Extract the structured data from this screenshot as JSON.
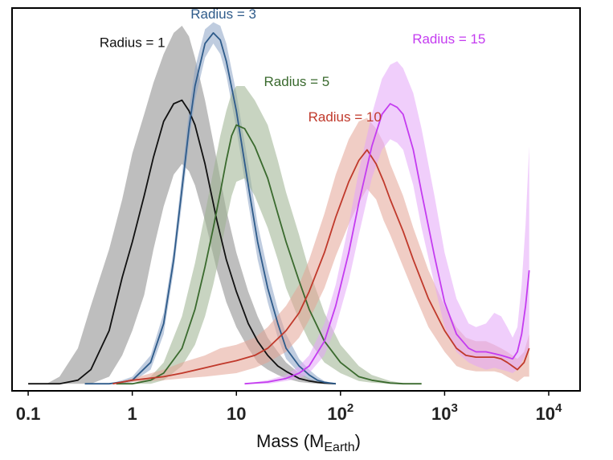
{
  "chart_data": {
    "type": "line",
    "title": "",
    "xlabel": "Mass (M",
    "xlabel_subscript": "Earth",
    "xlabel_close": ")",
    "ylabel": "",
    "xscale": "log",
    "xlim": [
      0.07,
      20000
    ],
    "ylim": [
      -0.02,
      1.06
    ],
    "x_ticks": [
      {
        "value": 0.1,
        "label": "0.1"
      },
      {
        "value": 1,
        "label": "1"
      },
      {
        "value": 10,
        "label": "10"
      },
      {
        "value": 100,
        "label": "10",
        "exp": "2"
      },
      {
        "value": 1000,
        "label": "10",
        "exp": "3"
      },
      {
        "value": 10000,
        "label": "10",
        "exp": "4"
      }
    ],
    "series": [
      {
        "name": "Radius = 1",
        "label_text": "Radius = 1",
        "label_pos": [
          1.0,
          0.95
        ],
        "color": "#111111",
        "fill": "#888888",
        "x": [
          0.1,
          0.15,
          0.2,
          0.3,
          0.4,
          0.6,
          0.8,
          1.0,
          1.3,
          1.6,
          2.0,
          2.5,
          3.0,
          3.5,
          4.0,
          5.0,
          6.5,
          8.0,
          10,
          13,
          16,
          20,
          25,
          30,
          40,
          50,
          60,
          70,
          90
        ],
        "y": [
          0.0,
          0.0,
          0.0,
          0.01,
          0.04,
          0.15,
          0.3,
          0.4,
          0.53,
          0.64,
          0.74,
          0.79,
          0.8,
          0.77,
          0.73,
          0.62,
          0.46,
          0.35,
          0.26,
          0.17,
          0.12,
          0.08,
          0.05,
          0.035,
          0.015,
          0.008,
          0.004,
          0.002,
          0.0
        ],
        "upper": [
          0.0,
          0.0,
          0.02,
          0.1,
          0.22,
          0.38,
          0.52,
          0.65,
          0.76,
          0.85,
          0.93,
          0.99,
          1.01,
          0.98,
          0.92,
          0.8,
          0.63,
          0.49,
          0.37,
          0.26,
          0.19,
          0.13,
          0.09,
          0.06,
          0.03,
          0.015,
          0.008,
          0.004,
          0.0
        ],
        "lower": [
          0.0,
          0.0,
          0.0,
          0.0,
          0.0,
          0.02,
          0.08,
          0.15,
          0.25,
          0.38,
          0.5,
          0.59,
          0.62,
          0.6,
          0.56,
          0.46,
          0.32,
          0.23,
          0.16,
          0.1,
          0.06,
          0.04,
          0.025,
          0.015,
          0.005,
          0.002,
          0.0,
          0.0,
          0.0
        ]
      },
      {
        "name": "Radius = 3",
        "label_text": "Radius = 3",
        "label_pos": [
          7.5,
          1.03
        ],
        "color": "#2e5b8a",
        "fill": "#8aa3c4",
        "x": [
          0.35,
          0.45,
          0.6,
          0.8,
          1.0,
          1.5,
          2.0,
          2.5,
          3.0,
          3.5,
          4.0,
          5.0,
          6.0,
          7.0,
          8.0,
          10,
          13,
          16,
          20,
          25,
          30,
          40,
          50,
          60,
          70,
          90
        ],
        "y": [
          0.0,
          0.0,
          0.0,
          0.005,
          0.01,
          0.06,
          0.17,
          0.35,
          0.55,
          0.72,
          0.84,
          0.96,
          0.99,
          0.97,
          0.91,
          0.77,
          0.56,
          0.4,
          0.27,
          0.17,
          0.1,
          0.05,
          0.025,
          0.01,
          0.004,
          0.0
        ],
        "upper": [
          0.0,
          0.0,
          0.0,
          0.01,
          0.02,
          0.08,
          0.2,
          0.38,
          0.59,
          0.77,
          0.89,
          1.0,
          1.02,
          1.01,
          0.96,
          0.82,
          0.62,
          0.45,
          0.32,
          0.21,
          0.14,
          0.07,
          0.04,
          0.02,
          0.008,
          0.0
        ],
        "lower": [
          0.0,
          0.0,
          0.0,
          0.0,
          0.005,
          0.04,
          0.14,
          0.32,
          0.51,
          0.68,
          0.8,
          0.92,
          0.96,
          0.93,
          0.87,
          0.72,
          0.51,
          0.35,
          0.23,
          0.13,
          0.07,
          0.03,
          0.012,
          0.004,
          0.0,
          0.0
        ]
      },
      {
        "name": "Radius = 5",
        "label_text": "Radius = 5",
        "label_pos": [
          38,
          0.84
        ],
        "color": "#3a6a2e",
        "fill": "#9bb18e",
        "x": [
          0.7,
          1.0,
          1.5,
          2.0,
          3.0,
          4.0,
          5.0,
          6.0,
          7.0,
          8.0,
          9.0,
          10,
          12,
          15,
          20,
          25,
          30,
          40,
          50,
          70,
          100,
          150,
          200,
          300,
          400,
          600
        ],
        "y": [
          0.0,
          0.0,
          0.01,
          0.03,
          0.1,
          0.21,
          0.33,
          0.44,
          0.54,
          0.63,
          0.7,
          0.73,
          0.72,
          0.67,
          0.58,
          0.48,
          0.4,
          0.29,
          0.21,
          0.12,
          0.06,
          0.02,
          0.01,
          0.002,
          0.0,
          0.0
        ],
        "upper": [
          0.0,
          0.0,
          0.02,
          0.06,
          0.19,
          0.34,
          0.48,
          0.6,
          0.7,
          0.77,
          0.82,
          0.84,
          0.84,
          0.8,
          0.73,
          0.63,
          0.54,
          0.42,
          0.32,
          0.2,
          0.11,
          0.05,
          0.025,
          0.008,
          0.002,
          0.0
        ],
        "lower": [
          0.0,
          0.0,
          0.0,
          0.01,
          0.05,
          0.11,
          0.19,
          0.28,
          0.37,
          0.46,
          0.53,
          0.57,
          0.58,
          0.53,
          0.44,
          0.35,
          0.27,
          0.18,
          0.12,
          0.06,
          0.03,
          0.008,
          0.003,
          0.0,
          0.0,
          0.0
        ]
      },
      {
        "name": "Radius = 10",
        "label_text": "Radius = 10",
        "label_pos": [
          110,
          0.74
        ],
        "color": "#c0392b",
        "fill": "#e3a495",
        "x": [
          0.65,
          1.0,
          2.0,
          3.0,
          5.0,
          7.0,
          10,
          15,
          20,
          30,
          40,
          50,
          70,
          90,
          120,
          150,
          180,
          220,
          260,
          300,
          400,
          500,
          700,
          1000,
          1300,
          1600,
          2000,
          2500,
          3000,
          3500,
          4000,
          5000,
          5800,
          6500
        ],
        "y": [
          0.0,
          0.01,
          0.02,
          0.03,
          0.045,
          0.055,
          0.065,
          0.08,
          0.1,
          0.15,
          0.2,
          0.26,
          0.37,
          0.47,
          0.57,
          0.63,
          0.66,
          0.62,
          0.57,
          0.52,
          0.43,
          0.35,
          0.24,
          0.15,
          0.1,
          0.08,
          0.075,
          0.075,
          0.075,
          0.07,
          0.06,
          0.04,
          0.06,
          0.1
        ],
        "upper": [
          0.0,
          0.015,
          0.04,
          0.06,
          0.08,
          0.1,
          0.11,
          0.13,
          0.16,
          0.22,
          0.28,
          0.35,
          0.48,
          0.59,
          0.69,
          0.74,
          0.75,
          0.72,
          0.68,
          0.62,
          0.53,
          0.44,
          0.32,
          0.22,
          0.16,
          0.13,
          0.12,
          0.12,
          0.11,
          0.1,
          0.09,
          0.07,
          0.09,
          0.14
        ],
        "lower": [
          0.0,
          0.005,
          0.01,
          0.015,
          0.02,
          0.025,
          0.03,
          0.045,
          0.06,
          0.09,
          0.13,
          0.18,
          0.27,
          0.36,
          0.45,
          0.51,
          0.55,
          0.52,
          0.46,
          0.42,
          0.33,
          0.26,
          0.16,
          0.09,
          0.05,
          0.04,
          0.035,
          0.035,
          0.035,
          0.03,
          0.02,
          0.005,
          0.02,
          0.02
        ]
      },
      {
        "name": "Radius = 15",
        "label_text": "Radius = 15",
        "label_pos": [
          1100,
          0.96
        ],
        "color": "#c43cf0",
        "fill": "#e3a6f7",
        "x": [
          12,
          20,
          30,
          40,
          50,
          70,
          90,
          120,
          150,
          200,
          250,
          300,
          350,
          400,
          500,
          600,
          800,
          1000,
          1300,
          1700,
          2000,
          2500,
          3000,
          3500,
          4000,
          4500,
          5000,
          5500,
          6000,
          6500
        ],
        "y": [
          0.0,
          0.005,
          0.015,
          0.03,
          0.05,
          0.12,
          0.22,
          0.37,
          0.51,
          0.67,
          0.76,
          0.79,
          0.78,
          0.76,
          0.66,
          0.54,
          0.36,
          0.23,
          0.14,
          0.1,
          0.09,
          0.09,
          0.085,
          0.08,
          0.075,
          0.07,
          0.09,
          0.14,
          0.22,
          0.32
        ],
        "upper": [
          0.0,
          0.01,
          0.025,
          0.05,
          0.08,
          0.17,
          0.28,
          0.45,
          0.6,
          0.76,
          0.86,
          0.9,
          0.91,
          0.89,
          0.82,
          0.72,
          0.53,
          0.37,
          0.24,
          0.17,
          0.16,
          0.17,
          0.2,
          0.19,
          0.16,
          0.13,
          0.16,
          0.28,
          0.45,
          0.67
        ],
        "lower": [
          0.0,
          0.0,
          0.008,
          0.015,
          0.03,
          0.08,
          0.16,
          0.29,
          0.42,
          0.58,
          0.66,
          0.69,
          0.68,
          0.66,
          0.56,
          0.44,
          0.28,
          0.16,
          0.09,
          0.06,
          0.05,
          0.04,
          0.045,
          0.04,
          0.035,
          0.03,
          0.04,
          0.06,
          0.08,
          0.1
        ]
      }
    ]
  }
}
